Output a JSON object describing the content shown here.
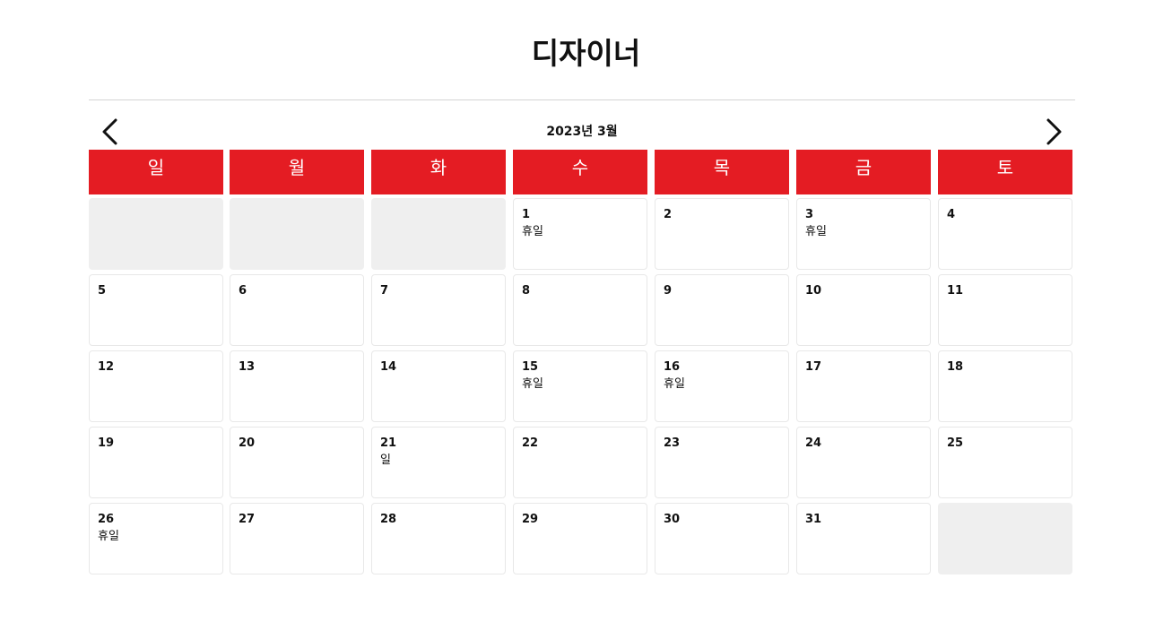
{
  "page": {
    "title": "디자이너"
  },
  "calendar": {
    "month_label": "2023년 3월",
    "weekdays": [
      "일",
      "월",
      "화",
      "수",
      "목",
      "금",
      "토"
    ],
    "accent_color": "#e41c23",
    "empty_cell_color": "#efefef",
    "cells": [
      {
        "day": "",
        "note": "",
        "empty": true
      },
      {
        "day": "",
        "note": "",
        "empty": true
      },
      {
        "day": "",
        "note": "",
        "empty": true
      },
      {
        "day": "1",
        "note": "휴일",
        "empty": false
      },
      {
        "day": "2",
        "note": "",
        "empty": false
      },
      {
        "day": "3",
        "note": "휴일",
        "empty": false
      },
      {
        "day": "4",
        "note": "",
        "empty": false
      },
      {
        "day": "5",
        "note": "",
        "empty": false
      },
      {
        "day": "6",
        "note": "",
        "empty": false
      },
      {
        "day": "7",
        "note": "",
        "empty": false
      },
      {
        "day": "8",
        "note": "",
        "empty": false
      },
      {
        "day": "9",
        "note": "",
        "empty": false
      },
      {
        "day": "10",
        "note": "",
        "empty": false
      },
      {
        "day": "11",
        "note": "",
        "empty": false
      },
      {
        "day": "12",
        "note": "",
        "empty": false
      },
      {
        "day": "13",
        "note": "",
        "empty": false
      },
      {
        "day": "14",
        "note": "",
        "empty": false
      },
      {
        "day": "15",
        "note": "휴일",
        "empty": false
      },
      {
        "day": "16",
        "note": "휴일",
        "empty": false
      },
      {
        "day": "17",
        "note": "",
        "empty": false
      },
      {
        "day": "18",
        "note": "",
        "empty": false
      },
      {
        "day": "19",
        "note": "",
        "empty": false
      },
      {
        "day": "20",
        "note": "",
        "empty": false
      },
      {
        "day": "21",
        "note": "일",
        "empty": false
      },
      {
        "day": "22",
        "note": "",
        "empty": false
      },
      {
        "day": "23",
        "note": "",
        "empty": false
      },
      {
        "day": "24",
        "note": "",
        "empty": false
      },
      {
        "day": "25",
        "note": "",
        "empty": false
      },
      {
        "day": "26",
        "note": "휴일",
        "empty": false
      },
      {
        "day": "27",
        "note": "",
        "empty": false
      },
      {
        "day": "28",
        "note": "",
        "empty": false
      },
      {
        "day": "29",
        "note": "",
        "empty": false
      },
      {
        "day": "30",
        "note": "",
        "empty": false
      },
      {
        "day": "31",
        "note": "",
        "empty": false
      },
      {
        "day": "",
        "note": "",
        "empty": true
      }
    ]
  },
  "icons": {
    "prev": "chevron-left-icon",
    "next": "chevron-right-icon"
  }
}
